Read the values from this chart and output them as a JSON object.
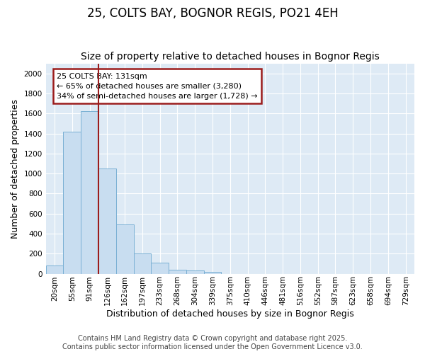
{
  "title": "25, COLTS BAY, BOGNOR REGIS, PO21 4EH",
  "subtitle": "Size of property relative to detached houses in Bognor Regis",
  "xlabel": "Distribution of detached houses by size in Bognor Regis",
  "ylabel": "Number of detached properties",
  "categories": [
    "20sqm",
    "55sqm",
    "91sqm",
    "126sqm",
    "162sqm",
    "197sqm",
    "233sqm",
    "268sqm",
    "304sqm",
    "339sqm",
    "375sqm",
    "410sqm",
    "446sqm",
    "481sqm",
    "516sqm",
    "552sqm",
    "587sqm",
    "623sqm",
    "658sqm",
    "694sqm",
    "729sqm"
  ],
  "values": [
    80,
    1420,
    1620,
    1050,
    490,
    205,
    110,
    40,
    35,
    18,
    0,
    0,
    0,
    0,
    0,
    0,
    0,
    0,
    0,
    0,
    0
  ],
  "bar_color": "#c8ddf0",
  "bar_edge_color": "#7ab0d4",
  "marker_label": "25 COLTS BAY: 131sqm",
  "marker_line_color": "#9b1c1c",
  "annotation_line1": "← 65% of detached houses are smaller (3,280)",
  "annotation_line2": "34% of semi-detached houses are larger (1,728) →",
  "annotation_box_edgecolor": "#9b1c1c",
  "ylim": [
    0,
    2100
  ],
  "yticks": [
    0,
    200,
    400,
    600,
    800,
    1000,
    1200,
    1400,
    1600,
    1800,
    2000
  ],
  "footer_line1": "Contains HM Land Registry data © Crown copyright and database right 2025.",
  "footer_line2": "Contains public sector information licensed under the Open Government Licence v3.0.",
  "bg_color": "#deeaf5",
  "fig_bg_color": "#ffffff",
  "title_fontsize": 12,
  "subtitle_fontsize": 10,
  "axis_label_fontsize": 9,
  "tick_fontsize": 7.5,
  "footer_fontsize": 7
}
